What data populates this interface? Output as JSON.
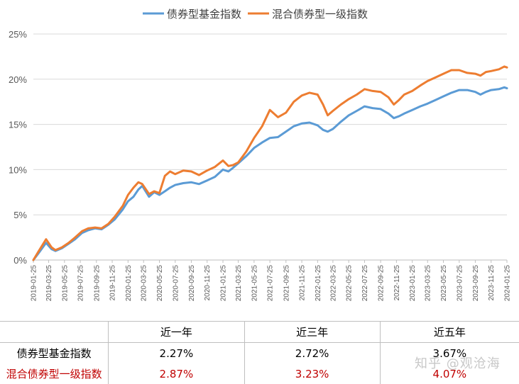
{
  "chart_data": {
    "type": "line",
    "title": "",
    "xlabel": "",
    "ylabel": "",
    "ylim": [
      0,
      25
    ],
    "y_ticks": [
      "0%",
      "5%",
      "10%",
      "15%",
      "20%",
      "25%"
    ],
    "x_ticks": [
      "2019-01-25",
      "2019-03-25",
      "2019-05-25",
      "2019-07-25",
      "2019-09-25",
      "2019-11-25",
      "2020-01-25",
      "2020-03-25",
      "2020-05-25",
      "2020-07-25",
      "2020-09-25",
      "2020-11-25",
      "2021-01-25",
      "2021-03-25",
      "2021-05-25",
      "2021-07-25",
      "2021-09-25",
      "2021-11-25",
      "2022-01-25",
      "2022-03-25",
      "2022-05-25",
      "2022-07-25",
      "2022-09-25",
      "2022-11-25",
      "2023-01-25",
      "2023-03-25",
      "2023-05-25",
      "2023-07-25",
      "2023-09-25",
      "2023-11-25",
      "2024-01-25"
    ],
    "grid": true,
    "legend_position": "top-center",
    "series": [
      {
        "name": "债券型基金指数",
        "color": "#5b9bd5",
        "x": [
          "2019-01-25",
          "2019-02-15",
          "2019-03-15",
          "2019-04-05",
          "2019-04-20",
          "2019-05-15",
          "2019-06-10",
          "2019-07-05",
          "2019-08-01",
          "2019-08-25",
          "2019-09-20",
          "2019-10-15",
          "2019-11-10",
          "2019-12-05",
          "2020-01-05",
          "2020-01-25",
          "2020-02-15",
          "2020-03-05",
          "2020-03-20",
          "2020-04-15",
          "2020-05-05",
          "2020-05-25",
          "2020-06-15",
          "2020-07-05",
          "2020-07-25",
          "2020-08-25",
          "2020-09-25",
          "2020-10-25",
          "2020-11-25",
          "2020-12-25",
          "2021-01-25",
          "2021-02-15",
          "2021-03-05",
          "2021-03-25",
          "2021-04-25",
          "2021-05-25",
          "2021-06-25",
          "2021-07-25",
          "2021-08-25",
          "2021-09-25",
          "2021-10-25",
          "2021-11-25",
          "2021-12-25",
          "2022-01-25",
          "2022-02-15",
          "2022-03-05",
          "2022-03-25",
          "2022-04-25",
          "2022-05-25",
          "2022-06-25",
          "2022-07-25",
          "2022-08-25",
          "2022-09-25",
          "2022-10-25",
          "2022-11-15",
          "2022-12-05",
          "2022-12-25",
          "2023-01-25",
          "2023-02-25",
          "2023-03-25",
          "2023-04-25",
          "2023-05-25",
          "2023-06-25",
          "2023-07-25",
          "2023-08-25",
          "2023-09-25",
          "2023-10-15",
          "2023-11-05",
          "2023-11-25",
          "2023-12-25",
          "2024-01-15",
          "2024-01-25"
        ],
        "values": [
          0.0,
          0.8,
          1.9,
          1.2,
          1.0,
          1.3,
          1.8,
          2.3,
          3.0,
          3.3,
          3.5,
          3.4,
          3.9,
          4.5,
          5.6,
          6.5,
          7.0,
          7.8,
          8.2,
          7.0,
          7.5,
          7.2,
          7.6,
          8.0,
          8.3,
          8.5,
          8.6,
          8.4,
          8.8,
          9.2,
          10.0,
          9.8,
          10.2,
          10.7,
          11.5,
          12.4,
          13.0,
          13.5,
          13.6,
          14.2,
          14.8,
          15.1,
          15.2,
          14.9,
          14.4,
          14.2,
          14.5,
          15.3,
          16.0,
          16.5,
          17.0,
          16.8,
          16.7,
          16.2,
          15.7,
          15.9,
          16.2,
          16.6,
          17.0,
          17.3,
          17.7,
          18.1,
          18.5,
          18.8,
          18.8,
          18.6,
          18.3,
          18.6,
          18.8,
          18.9,
          19.1,
          19.0
        ]
      },
      {
        "name": "混合债券型一级指数",
        "color": "#ed7d31",
        "x": [
          "2019-01-25",
          "2019-02-15",
          "2019-03-15",
          "2019-04-05",
          "2019-04-20",
          "2019-05-15",
          "2019-06-10",
          "2019-07-05",
          "2019-08-01",
          "2019-08-25",
          "2019-09-20",
          "2019-10-15",
          "2019-11-10",
          "2019-12-05",
          "2020-01-05",
          "2020-01-25",
          "2020-02-15",
          "2020-03-05",
          "2020-03-20",
          "2020-04-15",
          "2020-05-05",
          "2020-05-25",
          "2020-06-15",
          "2020-07-05",
          "2020-07-25",
          "2020-08-25",
          "2020-09-25",
          "2020-10-25",
          "2020-11-25",
          "2020-12-25",
          "2021-01-25",
          "2021-02-15",
          "2021-03-05",
          "2021-03-25",
          "2021-04-25",
          "2021-05-25",
          "2021-06-25",
          "2021-07-25",
          "2021-08-25",
          "2021-09-25",
          "2021-10-25",
          "2021-11-25",
          "2021-12-25",
          "2022-01-25",
          "2022-02-15",
          "2022-03-05",
          "2022-03-25",
          "2022-04-25",
          "2022-05-25",
          "2022-06-25",
          "2022-07-25",
          "2022-08-25",
          "2022-09-25",
          "2022-10-25",
          "2022-11-15",
          "2022-12-05",
          "2022-12-25",
          "2023-01-25",
          "2023-02-25",
          "2023-03-25",
          "2023-04-25",
          "2023-05-25",
          "2023-06-25",
          "2023-07-25",
          "2023-08-25",
          "2023-09-25",
          "2023-10-15",
          "2023-11-05",
          "2023-11-25",
          "2023-12-25",
          "2024-01-15",
          "2024-01-25"
        ],
        "values": [
          0.0,
          1.0,
          2.3,
          1.4,
          1.1,
          1.4,
          1.9,
          2.5,
          3.2,
          3.5,
          3.6,
          3.5,
          4.0,
          4.8,
          6.0,
          7.2,
          8.0,
          8.6,
          8.4,
          7.3,
          7.6,
          7.4,
          9.3,
          9.8,
          9.5,
          9.9,
          9.8,
          9.4,
          9.9,
          10.3,
          11.0,
          10.4,
          10.5,
          10.8,
          12.0,
          13.5,
          14.8,
          16.6,
          15.8,
          16.3,
          17.5,
          18.2,
          18.5,
          18.3,
          17.2,
          16.0,
          16.5,
          17.2,
          17.8,
          18.3,
          18.9,
          18.7,
          18.6,
          18.0,
          17.2,
          17.7,
          18.3,
          18.7,
          19.3,
          19.8,
          20.2,
          20.6,
          21.0,
          21.0,
          20.7,
          20.6,
          20.4,
          20.8,
          20.9,
          21.1,
          21.4,
          21.3
        ]
      }
    ]
  },
  "stats_table": {
    "headers": [
      "",
      "近一年",
      "近三年",
      "近五年"
    ],
    "rows": [
      {
        "name": "债券型基金指数",
        "values": [
          "2.27%",
          "2.72%",
          "3.67%"
        ]
      },
      {
        "name": "混合债券型一级指数",
        "values": [
          "2.87%",
          "3.23%",
          "4.07%"
        ]
      }
    ]
  },
  "watermark": "知乎 @观沧海"
}
